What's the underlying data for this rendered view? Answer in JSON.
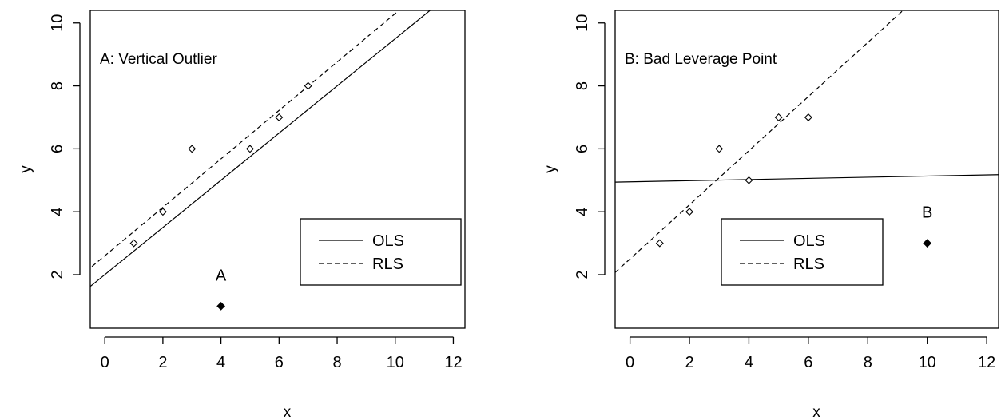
{
  "colors": {
    "ink": "#000000",
    "background": "#ffffff"
  },
  "chart_data": [
    {
      "type": "scatter",
      "panel_label": "A: Vertical Outlier",
      "xlabel": "x",
      "ylabel": "y",
      "xlim": [
        -0.5,
        12.4
      ],
      "ylim": [
        0.3,
        10.4
      ],
      "xticks": [
        0,
        2,
        4,
        6,
        8,
        10,
        12
      ],
      "yticks": [
        2,
        4,
        6,
        8,
        10
      ],
      "grid": false,
      "points": [
        {
          "x": 1,
          "y": 3,
          "filled": false
        },
        {
          "x": 2,
          "y": 4,
          "filled": false
        },
        {
          "x": 3,
          "y": 6,
          "filled": false
        },
        {
          "x": 5,
          "y": 6,
          "filled": false
        },
        {
          "x": 6,
          "y": 7,
          "filled": false
        },
        {
          "x": 7,
          "y": 8,
          "filled": false
        },
        {
          "x": 4,
          "y": 1,
          "filled": true,
          "label": "A"
        }
      ],
      "series": [
        {
          "name": "OLS",
          "style": "solid",
          "intercept": 2.0,
          "slope": 0.75
        },
        {
          "name": "RLS",
          "style": "dashed",
          "intercept": 2.6,
          "slope": 0.77
        }
      ],
      "legend": {
        "placement": "bottom-right",
        "entries": [
          "OLS",
          "RLS"
        ]
      }
    },
    {
      "type": "scatter",
      "panel_label": "B: Bad Leverage Point",
      "xlabel": "x",
      "ylabel": "y",
      "xlim": [
        -0.5,
        12.4
      ],
      "ylim": [
        0.3,
        10.4
      ],
      "xticks": [
        0,
        2,
        4,
        6,
        8,
        10,
        12
      ],
      "yticks": [
        2,
        4,
        6,
        8,
        10
      ],
      "grid": false,
      "points": [
        {
          "x": 1,
          "y": 3,
          "filled": false
        },
        {
          "x": 2,
          "y": 4,
          "filled": false
        },
        {
          "x": 3,
          "y": 6,
          "filled": false
        },
        {
          "x": 4,
          "y": 5,
          "filled": false
        },
        {
          "x": 5,
          "y": 7,
          "filled": false
        },
        {
          "x": 6,
          "y": 7,
          "filled": false
        },
        {
          "x": 10,
          "y": 3,
          "filled": true,
          "label": "B"
        }
      ],
      "series": [
        {
          "name": "OLS",
          "style": "solid",
          "intercept": 4.95,
          "slope": 0.0185
        },
        {
          "name": "RLS",
          "style": "dashed",
          "intercept": 2.5,
          "slope": 0.86
        }
      ],
      "legend": {
        "placement": "bottom-right",
        "entries": [
          "OLS",
          "RLS"
        ]
      }
    }
  ]
}
